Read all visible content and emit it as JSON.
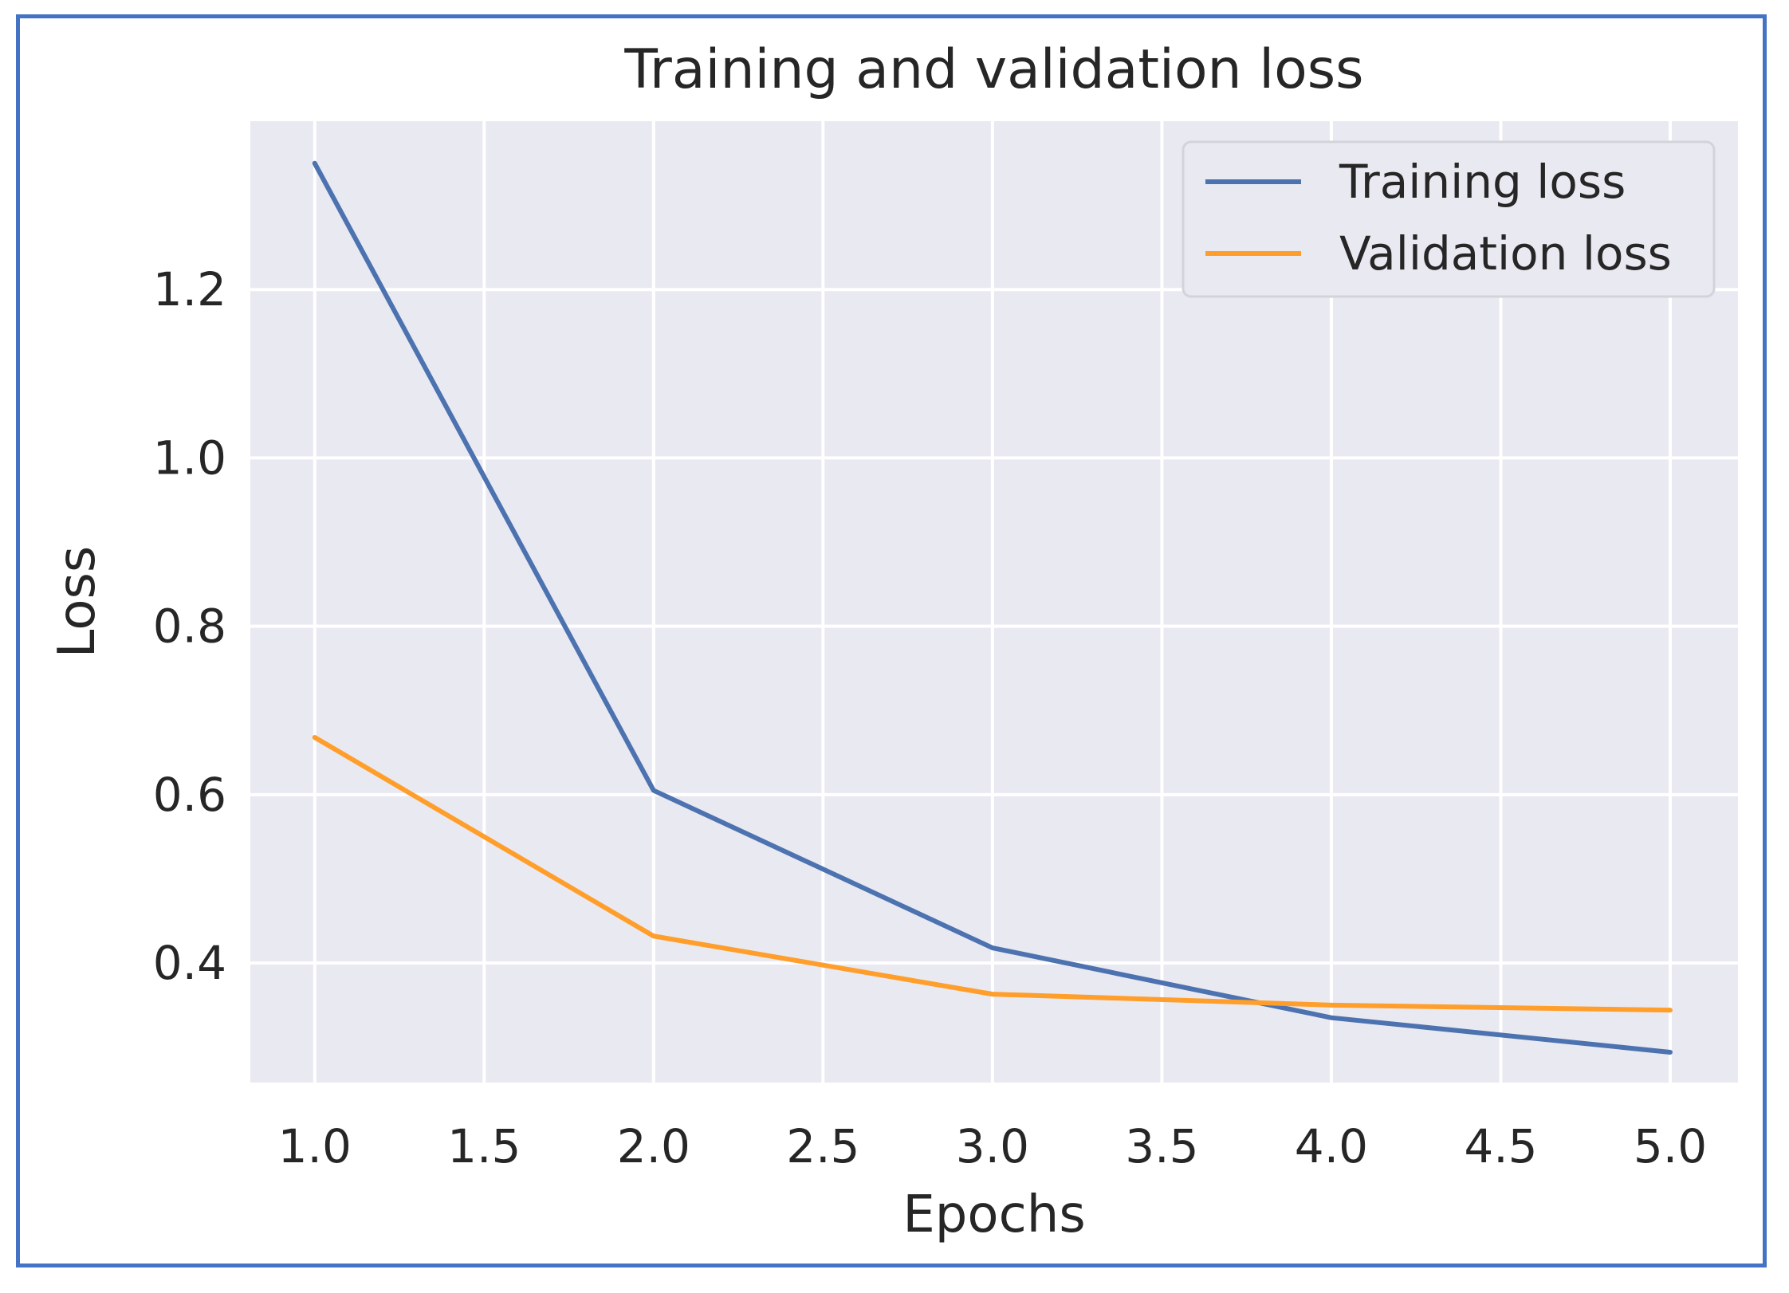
{
  "chart_data": {
    "type": "line",
    "title": "Training and validation loss",
    "xlabel": "Epochs",
    "ylabel": "Loss",
    "x": [
      1,
      2,
      3,
      4,
      5
    ],
    "xlim": [
      0.81,
      5.2
    ],
    "ylim": [
      0.258,
      1.4
    ],
    "x_ticks": [
      1.0,
      1.5,
      2.0,
      2.5,
      3.0,
      3.5,
      4.0,
      4.5,
      5.0
    ],
    "x_tick_labels": [
      "1.0",
      "1.5",
      "2.0",
      "2.5",
      "3.0",
      "3.5",
      "4.0",
      "4.5",
      "5.0"
    ],
    "y_ticks": [
      0.4,
      0.6,
      0.8,
      1.0,
      1.2
    ],
    "y_tick_labels": [
      "0.4",
      "0.6",
      "0.8",
      "1.0",
      "1.2"
    ],
    "grid": true,
    "legend_position": "top-right",
    "series": [
      {
        "name": "Training loss",
        "color": "#4c72b0",
        "values": [
          1.35,
          0.605,
          0.418,
          0.335,
          0.294
        ]
      },
      {
        "name": "Validation loss",
        "color": "#ff9e2a",
        "values": [
          0.668,
          0.432,
          0.363,
          0.35,
          0.344
        ]
      }
    ]
  },
  "colors": {
    "plot_background": "#e9e9f1",
    "grid": "#ffffff",
    "frame_border": "#4472c4"
  }
}
